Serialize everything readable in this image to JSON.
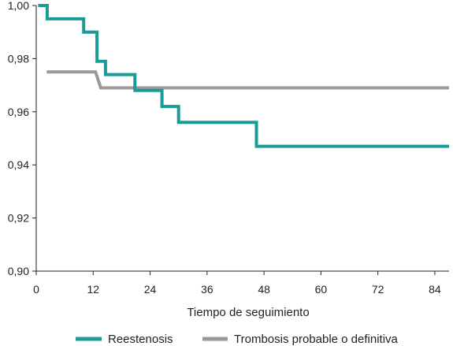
{
  "chart_data": {
    "type": "line",
    "step": true,
    "title": "",
    "xlabel": "Tiempo de seguimiento",
    "ylabel": "",
    "xlim": [
      0,
      87
    ],
    "ylim": [
      0.9,
      1.0
    ],
    "x_ticks": [
      0,
      12,
      24,
      36,
      48,
      60,
      72,
      84
    ],
    "x_tick_labels": [
      "0",
      "12",
      "24",
      "36",
      "48",
      "60",
      "72",
      "84"
    ],
    "y_ticks": [
      0.9,
      0.92,
      0.94,
      0.96,
      0.98,
      1.0
    ],
    "y_tick_labels": [
      "0,90",
      "0,92",
      "0,94",
      "0,96",
      "0,98",
      "1,00"
    ],
    "grid": false,
    "legend_position": "bottom",
    "series": [
      {
        "name": "Reestenosis",
        "color": "#1a9b98",
        "points": [
          [
            0.4,
            1.0
          ],
          [
            2.3,
            1.0
          ],
          [
            2.3,
            0.995
          ],
          [
            10.0,
            0.995
          ],
          [
            10.0,
            0.99
          ],
          [
            12.8,
            0.99
          ],
          [
            12.8,
            0.979
          ],
          [
            14.6,
            0.979
          ],
          [
            14.6,
            0.974
          ],
          [
            20.8,
            0.974
          ],
          [
            20.8,
            0.968
          ],
          [
            26.5,
            0.968
          ],
          [
            26.5,
            0.962
          ],
          [
            30.0,
            0.962
          ],
          [
            30.0,
            0.956
          ],
          [
            46.4,
            0.956
          ],
          [
            46.4,
            0.947
          ],
          [
            87.0,
            0.947
          ]
        ]
      },
      {
        "name": "Trombosis probable o definitiva",
        "color": "#999999",
        "points": [
          [
            2.2,
            0.975
          ],
          [
            12.5,
            0.975
          ],
          [
            13.6,
            0.969
          ],
          [
            87.0,
            0.969
          ]
        ]
      }
    ]
  }
}
